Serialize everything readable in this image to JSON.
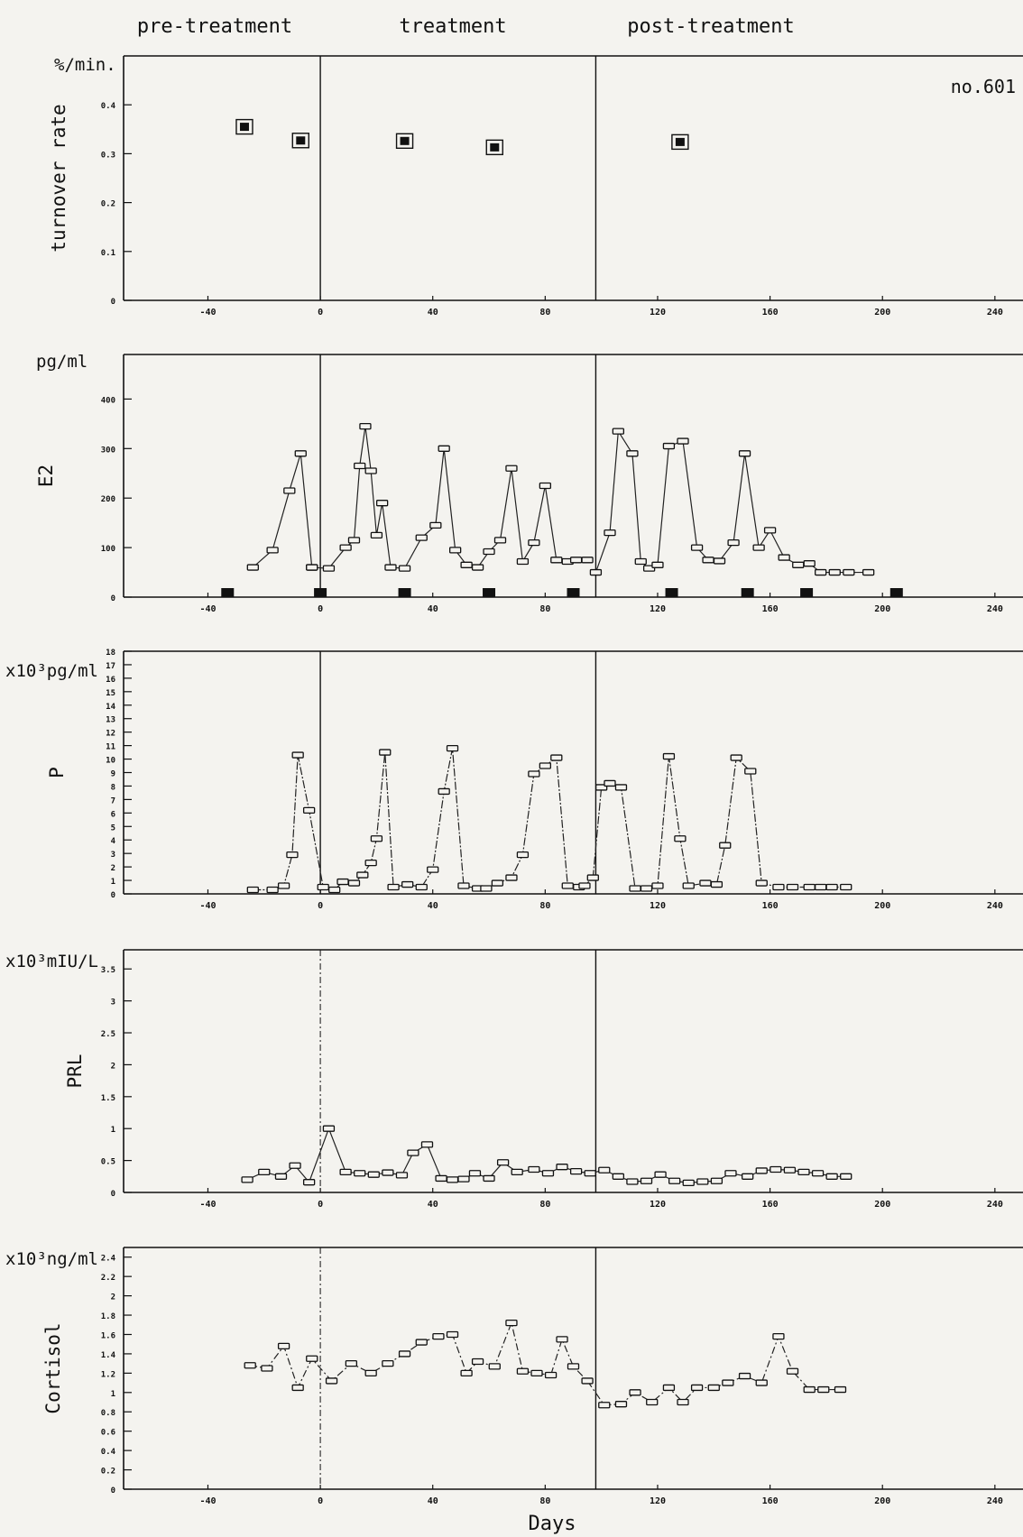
{
  "phases": [
    "pre-treatment",
    "treatment",
    "post-treatment"
  ],
  "xlabel": "Days",
  "note": "no.601",
  "chart_data": [
    {
      "type": "scatter",
      "id": "turnover",
      "unit": "%/min.",
      "ylabel": "turnover rate",
      "ylim": [
        0,
        0.5
      ],
      "yticks": [
        0,
        0.1,
        0.2,
        0.3,
        0.4
      ],
      "ytick_labels": [
        "0",
        "0.1",
        "0.2",
        "0.3",
        "0.4"
      ],
      "xlim": [
        -70,
        250
      ],
      "xticks": [
        -40,
        0,
        40,
        80,
        120,
        160,
        200,
        240
      ],
      "xtick_labels": [
        "-40",
        "0",
        "40",
        "80",
        "120",
        "160",
        "200",
        "240"
      ],
      "series": [
        {
          "x": [
            -27,
            -7,
            30,
            62,
            128
          ],
          "y": [
            0.355,
            0.327,
            0.326,
            0.313,
            0.324
          ]
        }
      ]
    },
    {
      "type": "line",
      "id": "e2",
      "unit": "pg/ml",
      "ylabel": "E2",
      "ylim": [
        0,
        490
      ],
      "yticks": [
        0,
        100,
        200,
        300,
        400
      ],
      "ytick_labels": [
        "0",
        "100",
        "200",
        "300",
        "400"
      ],
      "xlim": [
        -70,
        250
      ],
      "xticks": [
        -40,
        0,
        40,
        80,
        120,
        160,
        200,
        240
      ],
      "xtick_labels": [
        "-40",
        "0",
        "40",
        "80",
        "120",
        "160",
        "200",
        "240"
      ],
      "series": [
        {
          "x": [
            -24,
            -17,
            -11,
            -7,
            -3
          ],
          "y": [
            60,
            95,
            215,
            290,
            60
          ]
        },
        {
          "x": [
            -3,
            3,
            9,
            12,
            14,
            16,
            18,
            20,
            22,
            25,
            30,
            36,
            41,
            44,
            48,
            52,
            56,
            60,
            64,
            68,
            72,
            76,
            80,
            84,
            88,
            91,
            95
          ],
          "y": [
            60,
            58,
            100,
            115,
            265,
            345,
            255,
            125,
            190,
            60,
            58,
            120,
            145,
            300,
            95,
            65,
            60,
            92,
            115,
            260,
            72,
            110,
            225,
            75,
            72,
            75,
            75
          ]
        },
        {
          "x": [
            98,
            103,
            106,
            111,
            114,
            117,
            120,
            124,
            129,
            134,
            138,
            142,
            147,
            151,
            156,
            160,
            165,
            170,
            174,
            178,
            183,
            188,
            195
          ],
          "y": [
            50,
            130,
            335,
            290,
            72,
            58,
            65,
            305,
            315,
            100,
            75,
            73,
            110,
            290,
            100,
            135,
            80,
            65,
            68,
            50,
            50,
            50,
            50
          ]
        }
      ],
      "markers": {
        "x": [
          -33,
          0,
          30,
          60,
          90,
          125,
          152,
          173,
          205
        ],
        "y": [
          10,
          10,
          10,
          10,
          10,
          10,
          10,
          10,
          10
        ]
      }
    },
    {
      "type": "line",
      "id": "progesterone",
      "unit": "x10³pg/ml",
      "ylabel": "P",
      "ylim": [
        0,
        18
      ],
      "yticks": [
        0,
        1,
        2,
        3,
        4,
        5,
        6,
        7,
        8,
        9,
        10,
        11,
        12,
        13,
        14,
        15,
        16,
        17,
        18
      ],
      "ytick_labels": [
        "0",
        "1",
        "2",
        "3",
        "4",
        "5",
        "6",
        "7",
        "8",
        "9",
        "10",
        "11",
        "12",
        "13",
        "14",
        "15",
        "16",
        "17",
        "18"
      ],
      "xlim": [
        -70,
        250
      ],
      "xticks": [
        -40,
        0,
        40,
        80,
        120,
        160,
        200,
        240
      ],
      "xtick_labels": [
        "-40",
        "0",
        "40",
        "80",
        "120",
        "160",
        "200",
        "240"
      ],
      "series": [
        {
          "x": [
            -24,
            -17,
            -13,
            -10,
            -8,
            -4,
            1,
            5,
            8,
            12,
            15,
            18,
            20,
            23,
            26,
            31,
            36,
            40,
            44,
            47,
            51,
            56,
            59,
            63,
            68,
            72,
            76,
            80,
            84,
            88,
            92,
            94,
            97,
            100,
            103,
            107,
            112,
            116,
            120,
            124,
            128,
            131,
            137,
            141,
            144,
            148,
            153,
            157,
            163,
            168,
            174,
            178,
            182,
            187
          ],
          "y": [
            0.3,
            0.3,
            0.6,
            2.9,
            10.3,
            6.2,
            0.5,
            0.3,
            0.9,
            0.8,
            1.4,
            2.3,
            4.1,
            10.5,
            0.5,
            0.7,
            0.5,
            1.8,
            7.6,
            10.8,
            0.6,
            0.4,
            0.4,
            0.8,
            1.2,
            2.9,
            8.9,
            9.5,
            10.1,
            0.6,
            0.5,
            0.6,
            1.2,
            7.9,
            8.2,
            7.9,
            0.4,
            0.4,
            0.6,
            10.2,
            4.1,
            0.6,
            0.8,
            0.7,
            3.6,
            10.1,
            9.1,
            0.8,
            0.5,
            0.5,
            0.5,
            0.5,
            0.5,
            0.5
          ]
        }
      ]
    },
    {
      "type": "line",
      "id": "prl",
      "unit": "x10³mIU/L",
      "ylabel": "PRL",
      "ylim": [
        0,
        3.8
      ],
      "yticks": [
        0,
        0.5,
        1,
        1.5,
        2,
        2.5,
        3,
        3.5
      ],
      "ytick_labels": [
        "0",
        "0.5",
        "1",
        "1.5",
        "2",
        "2.5",
        "3",
        "3.5"
      ],
      "xlim": [
        -70,
        250
      ],
      "xticks": [
        -40,
        0,
        40,
        80,
        120,
        160,
        200,
        240
      ],
      "xtick_labels": [
        "-40",
        "0",
        "40",
        "80",
        "120",
        "160",
        "200",
        "240"
      ],
      "series": [
        {
          "x": [
            -26,
            -20,
            -14,
            -9,
            -4,
            3,
            9,
            14,
            19,
            24,
            29,
            33,
            38,
            43,
            47,
            51,
            55,
            60,
            65,
            70,
            76,
            81,
            86,
            91,
            96,
            101,
            106,
            111,
            116,
            121,
            126,
            131,
            136,
            141,
            146,
            152,
            157,
            162,
            167,
            172,
            177,
            182,
            187
          ],
          "y": [
            0.2,
            0.32,
            0.25,
            0.42,
            0.16,
            1.0,
            0.32,
            0.3,
            0.28,
            0.31,
            0.27,
            0.62,
            0.75,
            0.22,
            0.2,
            0.21,
            0.3,
            0.22,
            0.47,
            0.32,
            0.36,
            0.3,
            0.4,
            0.33,
            0.3,
            0.35,
            0.25,
            0.17,
            0.18,
            0.28,
            0.18,
            0.15,
            0.17,
            0.18,
            0.3,
            0.25,
            0.34,
            0.36,
            0.35,
            0.32,
            0.3,
            0.25,
            0.25
          ]
        }
      ]
    },
    {
      "type": "line",
      "id": "cortisol",
      "unit": "x10³ng/ml",
      "ylabel": "Cortisol",
      "ylim": [
        0,
        2.5
      ],
      "yticks": [
        0,
        0.2,
        0.4,
        0.6,
        0.8,
        1,
        1.2,
        1.4,
        1.6,
        1.8,
        2,
        2.2,
        2.4
      ],
      "ytick_labels": [
        "0",
        "0.2",
        "0.4",
        "0.6",
        "0.8",
        "1",
        "1.2",
        "1.4",
        "1.6",
        "1.8",
        "2",
        "2.2",
        "2.4"
      ],
      "xlim": [
        -70,
        250
      ],
      "xticks": [
        -40,
        0,
        40,
        80,
        120,
        160,
        200,
        240
      ],
      "xtick_labels": [
        "-40",
        "0",
        "40",
        "80",
        "120",
        "160",
        "200",
        "240"
      ],
      "series": [
        {
          "x": [
            -25,
            -19,
            -13,
            -8,
            -3,
            4,
            11,
            18,
            24,
            30,
            36,
            42,
            47,
            52,
            56,
            62,
            68,
            72,
            77,
            82,
            86,
            90,
            95,
            101,
            107,
            112,
            118,
            124,
            129,
            134,
            140,
            145,
            151,
            157,
            163,
            168,
            174,
            179,
            185
          ],
          "y": [
            1.28,
            1.25,
            1.48,
            1.05,
            1.35,
            1.12,
            1.3,
            1.2,
            1.3,
            1.4,
            1.52,
            1.58,
            1.6,
            1.2,
            1.32,
            1.27,
            1.72,
            1.22,
            1.2,
            1.18,
            1.55,
            1.27,
            1.12,
            0.87,
            0.88,
            1.0,
            0.9,
            1.05,
            0.9,
            1.05,
            1.05,
            1.1,
            1.17,
            1.1,
            1.58,
            1.22,
            1.03,
            1.03,
            1.03
          ]
        }
      ]
    }
  ]
}
